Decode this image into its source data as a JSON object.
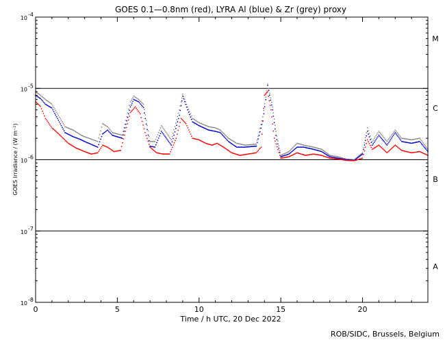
{
  "chart_data": {
    "type": "line",
    "title": "GOES 0.1—0.8nm (red), LYRA Al (blue) & Zr (grey) proxy",
    "xlabel": "Time / h UTC, 20 Dec 2022",
    "ylabel": "GOES Irradiance / (W m⁻²)",
    "xlim": [
      0,
      24
    ],
    "ylim": [
      1e-08,
      0.0001
    ],
    "yscale": "log",
    "x_ticks": [
      0,
      5,
      10,
      15,
      20
    ],
    "y_ticks": [
      {
        "value": 1e-08,
        "base": "10",
        "exp": "-8"
      },
      {
        "value": 1e-07,
        "base": "10",
        "exp": "-7"
      },
      {
        "value": 1e-06,
        "base": "10",
        "exp": "-6"
      },
      {
        "value": 1e-05,
        "base": "10",
        "exp": "-5"
      },
      {
        "value": 0.0001,
        "base": "10",
        "exp": "-4"
      }
    ],
    "class_lines": [
      1e-07,
      1e-06,
      1e-05
    ],
    "class_labels": [
      {
        "label": "A",
        "value": 3.2e-08
      },
      {
        "label": "B",
        "value": 5.3e-07
      },
      {
        "label": "C",
        "value": 5.3e-06
      },
      {
        "label": "M",
        "value": 5e-05
      }
    ],
    "grid": false,
    "series": [
      {
        "name": "GOES 0.1—0.8nm",
        "color": "#ff0000",
        "points": [
          [
            0,
            6.5e-06
          ],
          [
            0.3,
            5.6e-06
          ],
          [
            0.6,
            3.8e-06
          ],
          [
            1,
            2.8e-06
          ],
          [
            1.5,
            2.2e-06
          ],
          [
            2,
            1.7e-06
          ],
          [
            2.5,
            1.45e-06
          ],
          [
            3,
            1.3e-06
          ],
          [
            3.4,
            1.2e-06
          ],
          [
            3.8,
            1.25e-06
          ],
          [
            4.1,
            1.6e-06
          ],
          [
            4.4,
            1.5e-06
          ],
          [
            4.8,
            1.3e-06
          ],
          [
            5.2,
            1.35e-06
          ],
          [
            5.5,
            2.5e-06
          ],
          [
            5.8,
            4.6e-06
          ],
          [
            6.1,
            5.5e-06
          ],
          [
            6.4,
            4.4e-06
          ],
          [
            6.7,
            2.4e-06
          ],
          [
            7,
            1.5e-06
          ],
          [
            7.4,
            1.25e-06
          ],
          [
            7.8,
            1.2e-06
          ],
          [
            8.2,
            1.2e-06
          ],
          [
            8.6,
            2e-06
          ],
          [
            8.9,
            3.8e-06
          ],
          [
            9.2,
            3.2e-06
          ],
          [
            9.6,
            2e-06
          ],
          [
            10,
            1.9e-06
          ],
          [
            10.4,
            1.7e-06
          ],
          [
            10.8,
            1.6e-06
          ],
          [
            11.1,
            1.7e-06
          ],
          [
            11.5,
            1.5e-06
          ],
          [
            12,
            1.25e-06
          ],
          [
            12.5,
            1.15e-06
          ],
          [
            13,
            1.2e-06
          ],
          [
            13.5,
            1.25e-06
          ],
          [
            13.8,
            1.5e-06
          ],
          [
            14,
            8e-06
          ],
          [
            14.2,
            9e-06
          ],
          [
            14.4,
            5e-06
          ],
          [
            14.6,
            2e-06
          ],
          [
            15,
            1.05e-06
          ],
          [
            15.5,
            1.1e-06
          ],
          [
            16,
            1.25e-06
          ],
          [
            16.5,
            1.15e-06
          ],
          [
            17,
            1.2e-06
          ],
          [
            17.5,
            1.15e-06
          ],
          [
            18,
            1.05e-06
          ],
          [
            18.5,
            1.02e-06
          ],
          [
            19,
            9.8e-07
          ],
          [
            19.5,
            9.7e-07
          ],
          [
            20,
            1.05e-06
          ],
          [
            20.3,
            1.9e-06
          ],
          [
            20.6,
            1.4e-06
          ],
          [
            21,
            1.6e-06
          ],
          [
            21.5,
            1.25e-06
          ],
          [
            22,
            1.6e-06
          ],
          [
            22.4,
            1.35e-06
          ],
          [
            23,
            1.25e-06
          ],
          [
            23.5,
            1.3e-06
          ],
          [
            24,
            1.15e-06
          ]
        ]
      },
      {
        "name": "LYRA Al",
        "color": "#0000cc",
        "points": [
          [
            0,
            8e-06
          ],
          [
            0.3,
            7.2e-06
          ],
          [
            0.6,
            6e-06
          ],
          [
            1,
            5.3e-06
          ],
          [
            1.8,
            2.4e-06
          ],
          [
            2.3,
            2.1e-06
          ],
          [
            2.8,
            1.9e-06
          ],
          [
            3,
            1.8e-06
          ],
          [
            3.8,
            1.5e-06
          ],
          [
            4.1,
            2.3e-06
          ],
          [
            4.4,
            2.6e-06
          ],
          [
            4.7,
            2.2e-06
          ],
          [
            5.3,
            2e-06
          ],
          [
            5.8,
            5.5e-06
          ],
          [
            6,
            7e-06
          ],
          [
            6.3,
            6.5e-06
          ],
          [
            6.6,
            5.4e-06
          ],
          [
            7,
            1.55e-06
          ],
          [
            7.3,
            1.5e-06
          ],
          [
            7.7,
            2.5e-06
          ],
          [
            8.3,
            1.6e-06
          ],
          [
            8.8,
            4.2e-06
          ],
          [
            9,
            7.8e-06
          ],
          [
            9.3,
            5e-06
          ],
          [
            9.6,
            3.4e-06
          ],
          [
            10,
            3e-06
          ],
          [
            10.6,
            2.6e-06
          ],
          [
            11,
            2.5e-06
          ],
          [
            11.3,
            2.4e-06
          ],
          [
            11.8,
            1.8e-06
          ],
          [
            12.3,
            1.5e-06
          ],
          [
            12.8,
            1.5e-06
          ],
          [
            13.5,
            1.55e-06
          ],
          [
            13.9,
            3.5e-06
          ],
          [
            14.2,
            1.1e-05
          ],
          [
            14.5,
            5e-06
          ],
          [
            14.7,
            2.2e-06
          ],
          [
            15,
            1.1e-06
          ],
          [
            15.5,
            1.2e-06
          ],
          [
            16,
            1.5e-06
          ],
          [
            16.4,
            1.5e-06
          ],
          [
            17,
            1.4e-06
          ],
          [
            17.5,
            1.3e-06
          ],
          [
            18,
            1.1e-06
          ],
          [
            18.5,
            1.05e-06
          ],
          [
            19,
            1e-06
          ],
          [
            19.5,
            9.8e-07
          ],
          [
            20,
            1.2e-06
          ],
          [
            20.3,
            2.5e-06
          ],
          [
            20.6,
            1.6e-06
          ],
          [
            21,
            2.2e-06
          ],
          [
            21.5,
            1.6e-06
          ],
          [
            22,
            2.4e-06
          ],
          [
            22.4,
            1.8e-06
          ],
          [
            23,
            1.7e-06
          ],
          [
            23.5,
            1.8e-06
          ],
          [
            24,
            1.3e-06
          ]
        ]
      },
      {
        "name": "LYRA Zr",
        "color": "#8a8a8a",
        "points": [
          [
            0,
            9e-06
          ],
          [
            0.3,
            8e-06
          ],
          [
            0.6,
            7e-06
          ],
          [
            1,
            6e-06
          ],
          [
            1.8,
            2.9e-06
          ],
          [
            2.3,
            2.6e-06
          ],
          [
            2.8,
            2.2e-06
          ],
          [
            3,
            2.1e-06
          ],
          [
            3.8,
            1.8e-06
          ],
          [
            4.1,
            3.2e-06
          ],
          [
            4.4,
            2.9e-06
          ],
          [
            4.7,
            2.4e-06
          ],
          [
            5.3,
            2.2e-06
          ],
          [
            5.8,
            6.5e-06
          ],
          [
            6,
            7.8e-06
          ],
          [
            6.3,
            7e-06
          ],
          [
            6.6,
            6e-06
          ],
          [
            7,
            1.8e-06
          ],
          [
            7.3,
            1.8e-06
          ],
          [
            7.7,
            3e-06
          ],
          [
            8.3,
            1.9e-06
          ],
          [
            8.8,
            5e-06
          ],
          [
            9,
            8.3e-06
          ],
          [
            9.3,
            5.5e-06
          ],
          [
            9.6,
            3.8e-06
          ],
          [
            10,
            3.3e-06
          ],
          [
            10.6,
            2.9e-06
          ],
          [
            11,
            2.8e-06
          ],
          [
            11.3,
            2.6e-06
          ],
          [
            11.8,
            2e-06
          ],
          [
            12.3,
            1.7e-06
          ],
          [
            12.8,
            1.6e-06
          ],
          [
            13.5,
            1.65e-06
          ],
          [
            13.9,
            4e-06
          ],
          [
            14.2,
            1.15e-05
          ],
          [
            14.5,
            5.5e-06
          ],
          [
            14.7,
            2.5e-06
          ],
          [
            15,
            1.15e-06
          ],
          [
            15.5,
            1.3e-06
          ],
          [
            16,
            1.7e-06
          ],
          [
            16.4,
            1.6e-06
          ],
          [
            17,
            1.5e-06
          ],
          [
            17.5,
            1.4e-06
          ],
          [
            18,
            1.15e-06
          ],
          [
            18.5,
            1.1e-06
          ],
          [
            19,
            1.02e-06
          ],
          [
            19.5,
            1e-06
          ],
          [
            20,
            1.25e-06
          ],
          [
            20.3,
            2.8e-06
          ],
          [
            20.6,
            1.8e-06
          ],
          [
            21,
            2.5e-06
          ],
          [
            21.5,
            1.8e-06
          ],
          [
            22,
            2.6e-06
          ],
          [
            22.4,
            2e-06
          ],
          [
            23,
            1.9e-06
          ],
          [
            23.5,
            2e-06
          ],
          [
            24,
            1.4e-06
          ]
        ]
      }
    ]
  },
  "footer": {
    "credit": "ROB/SIDC, Brussels, Belgium"
  }
}
